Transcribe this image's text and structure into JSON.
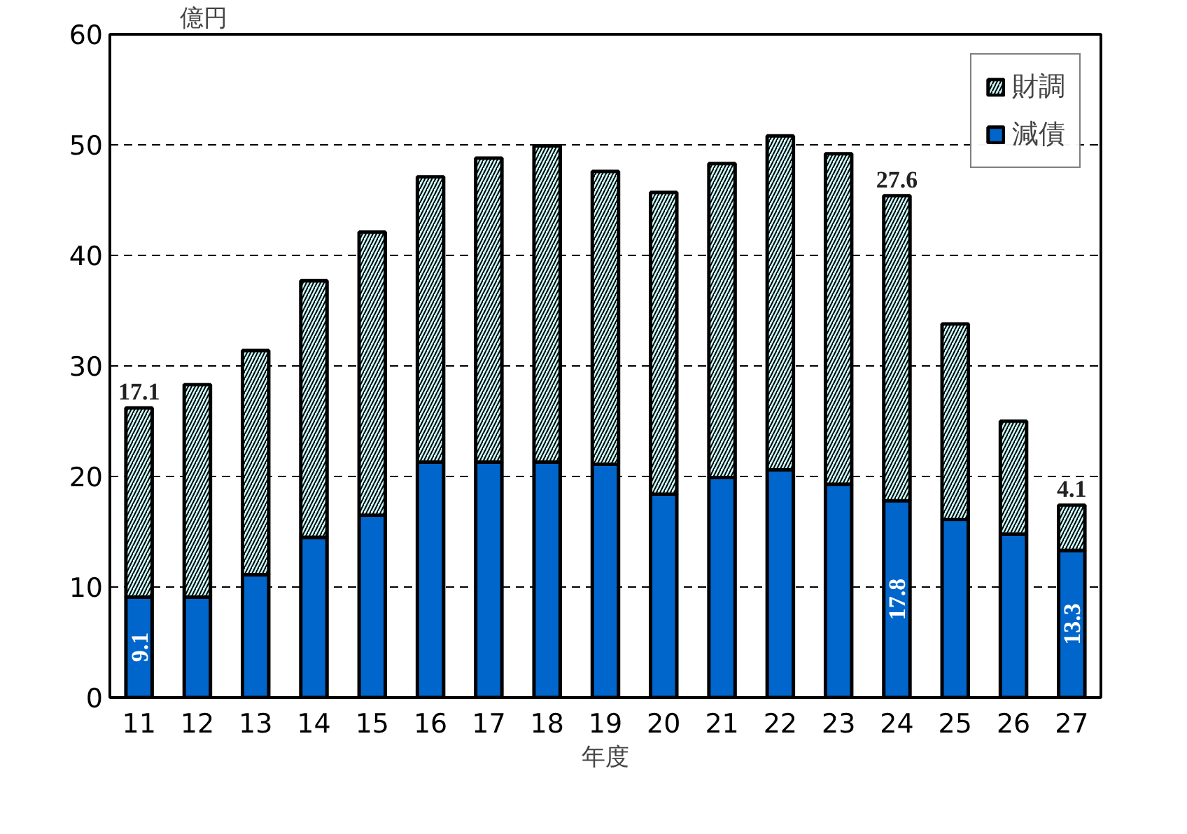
{
  "chart_data": {
    "type": "bar",
    "stacked": true,
    "xlabel": "年度",
    "ylabel": "億円",
    "categories": [
      "11",
      "12",
      "13",
      "14",
      "15",
      "16",
      "17",
      "18",
      "19",
      "20",
      "21",
      "22",
      "23",
      "24",
      "25",
      "26",
      "27"
    ],
    "series": [
      {
        "name": "減債",
        "color": "#0066cc",
        "values": [
          9.1,
          9.1,
          11.1,
          14.5,
          16.5,
          21.3,
          21.3,
          21.3,
          21.1,
          18.4,
          19.9,
          20.6,
          19.3,
          17.8,
          16.1,
          14.8,
          13.3
        ],
        "value_labels": [
          "9.1",
          null,
          null,
          null,
          null,
          null,
          null,
          null,
          null,
          null,
          null,
          null,
          null,
          "17.8",
          null,
          null,
          "13.3"
        ]
      },
      {
        "name": "財調",
        "color": "#ccffff",
        "values": [
          17.1,
          19.2,
          20.3,
          23.2,
          25.6,
          25.8,
          27.5,
          28.6,
          26.5,
          27.3,
          28.4,
          30.2,
          29.9,
          27.6,
          17.7,
          10.2,
          4.1
        ],
        "value_labels": [
          "17.1",
          null,
          null,
          null,
          null,
          null,
          null,
          null,
          null,
          null,
          null,
          null,
          null,
          "27.6",
          null,
          null,
          "4.1"
        ]
      }
    ],
    "ylim": [
      0,
      60
    ],
    "yticks": [
      0,
      10,
      20,
      30,
      40,
      50,
      60
    ],
    "grid": "y",
    "legend": "top right"
  }
}
